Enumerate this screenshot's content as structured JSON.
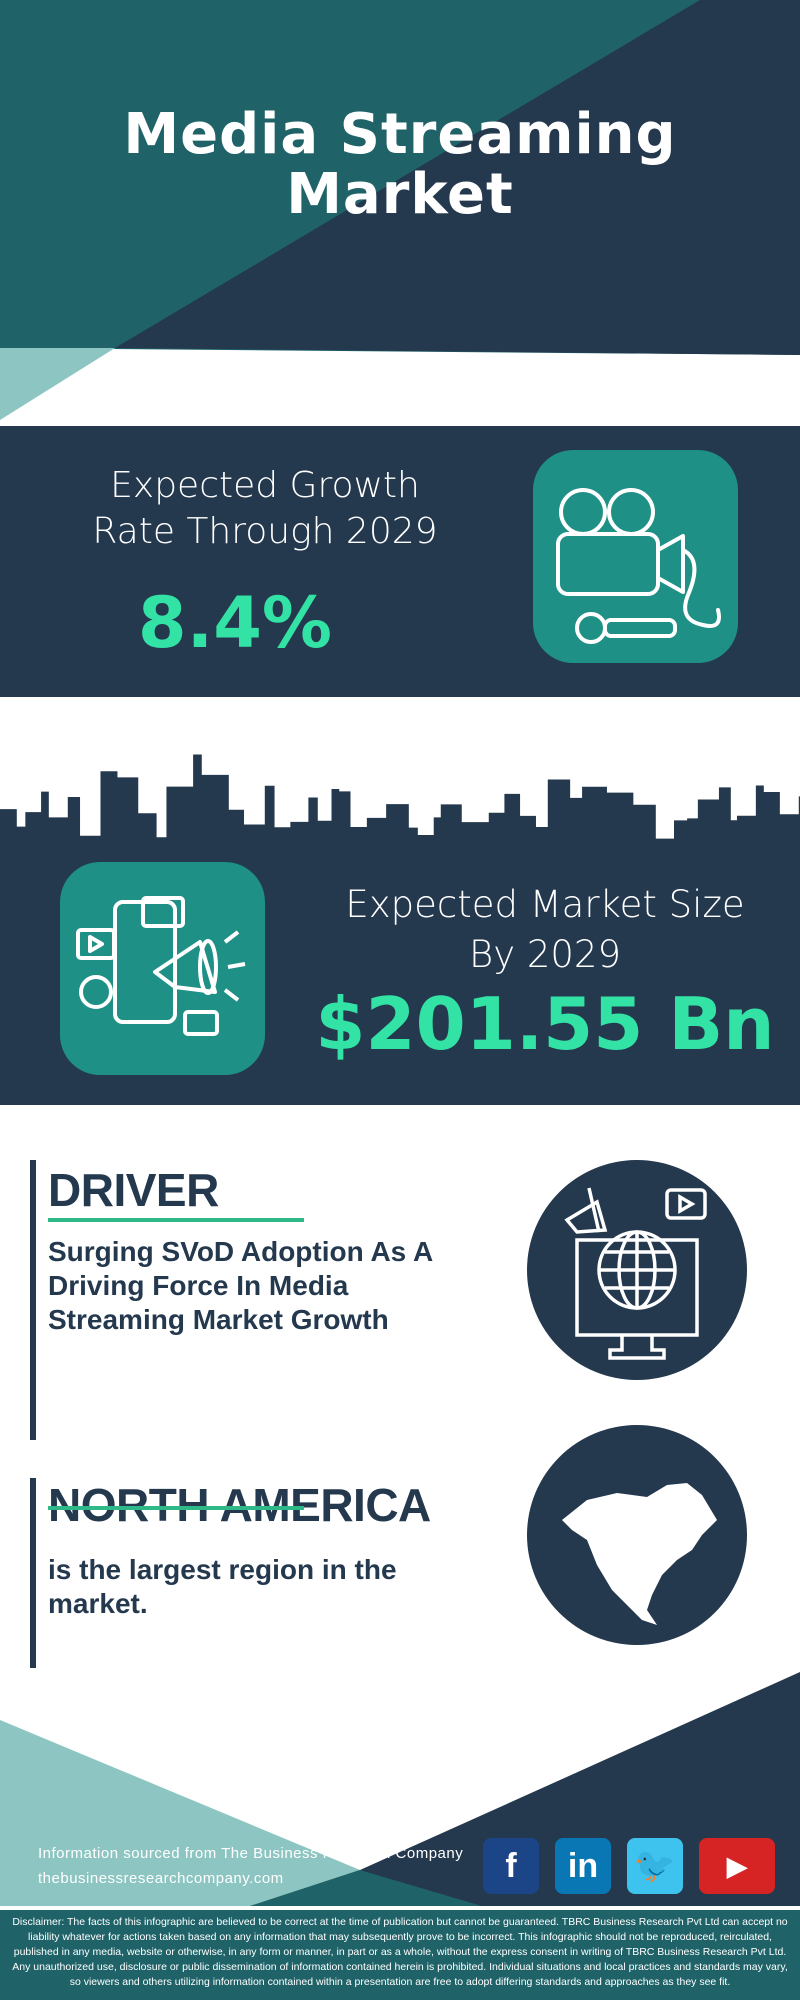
{
  "title": "Media Streaming Market",
  "growth": {
    "label_line1": "Expected Growth",
    "label_line2": "Rate Through 2029",
    "value": "8.4%",
    "icon": "video-camera-microphone-icon"
  },
  "market_size": {
    "label_line1": "Expected Market Size",
    "label_line2": "By 2029",
    "value": "$201.55 Bn",
    "icon": "social-media-megaphone-icon"
  },
  "driver": {
    "heading": "DRIVER",
    "text": "Surging SVoD Adoption As A Driving Force In Media Streaming Market Growth",
    "icon": "globe-monitor-icon"
  },
  "region": {
    "heading": "NORTH AMERICA",
    "text": "is the largest region in the market.",
    "icon": "north-america-map-icon"
  },
  "footer": {
    "source": "Information sourced from The Business Research Company",
    "website": "thebusinessresearchcompany.com",
    "social": [
      {
        "name": "facebook",
        "glyph": "f",
        "color": "#1c4587"
      },
      {
        "name": "linkedin",
        "glyph": "in",
        "color": "#0a77b5"
      },
      {
        "name": "twitter",
        "glyph": "🐦",
        "color": "#3ec3ef"
      },
      {
        "name": "youtube",
        "glyph": "▶",
        "color": "#d62424"
      }
    ]
  },
  "disclaimer": "Disclaimer: The facts of this infographic are believed to be correct at the time of publication but cannot be guaranteed. TBRC Business Research Pvt Ltd can accept no liability whatever for actions taken based on any information that may subsequently prove to be incorrect. This infographic should not be reproduced, reirculated, published in any media, website or otherwise, in any form or manner, in part or as a whole, without the express consent in writing of TBRC Business Research Pvt Ltd. Any unauthorized use, disclosure or public dissemination of information contained herein is prohibited. Individual situations and local practices and standards may vary, so viewers and others utilizing information contained within a presentation are free to adopt differing standards and approaches as they see fit.",
  "colors": {
    "dark": "#24384e",
    "teal": "#1f6369",
    "light_teal": "#8cc5c1",
    "accent_green": "#33e3a6",
    "icon_box": "#1e9085"
  }
}
